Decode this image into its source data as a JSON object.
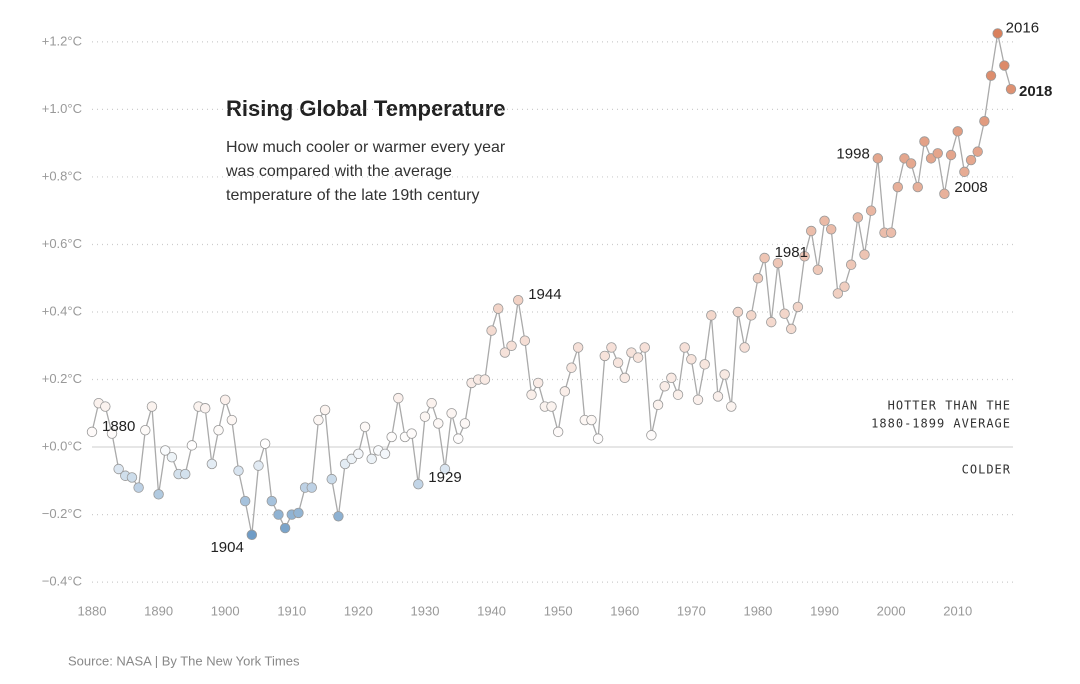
{
  "chart_data": {
    "type": "line",
    "title": "Rising Global Temperature",
    "subtitle": [
      "How much cooler or warmer every year",
      "was compared with the average",
      "temperature of the late 19th century"
    ],
    "source": "Source: NASA | By The New York Times",
    "side_labels": [
      "HOTTER THAN THE",
      "1880-1899 AVERAGE",
      "COLDER"
    ],
    "x": [
      1880,
      1881,
      1882,
      1883,
      1884,
      1885,
      1886,
      1887,
      1888,
      1889,
      1890,
      1891,
      1892,
      1893,
      1894,
      1895,
      1896,
      1897,
      1898,
      1899,
      1900,
      1901,
      1902,
      1903,
      1904,
      1905,
      1906,
      1907,
      1908,
      1909,
      1910,
      1911,
      1912,
      1913,
      1914,
      1915,
      1916,
      1917,
      1918,
      1919,
      1920,
      1921,
      1922,
      1923,
      1924,
      1925,
      1926,
      1927,
      1928,
      1929,
      1930,
      1931,
      1932,
      1933,
      1934,
      1935,
      1936,
      1937,
      1938,
      1939,
      1940,
      1941,
      1942,
      1943,
      1944,
      1945,
      1946,
      1947,
      1948,
      1949,
      1950,
      1951,
      1952,
      1953,
      1954,
      1955,
      1956,
      1957,
      1958,
      1959,
      1960,
      1961,
      1962,
      1963,
      1964,
      1965,
      1966,
      1967,
      1968,
      1969,
      1970,
      1971,
      1972,
      1973,
      1974,
      1975,
      1976,
      1977,
      1978,
      1979,
      1980,
      1981,
      1982,
      1983,
      1984,
      1985,
      1986,
      1987,
      1988,
      1989,
      1990,
      1991,
      1992,
      1993,
      1994,
      1995,
      1996,
      1997,
      1998,
      1999,
      2000,
      2001,
      2002,
      2003,
      2004,
      2005,
      2006,
      2007,
      2008,
      2009,
      2010,
      2011,
      2012,
      2013,
      2014,
      2015,
      2016,
      2017,
      2018
    ],
    "series": [
      {
        "values": [
          0.045,
          0.13,
          0.12,
          0.04,
          -0.065,
          -0.085,
          -0.09,
          -0.12,
          0.05,
          0.12,
          -0.14,
          -0.01,
          -0.03,
          -0.08,
          -0.08,
          0.005,
          0.12,
          0.115,
          -0.05,
          0.05,
          0.14,
          0.08,
          -0.07,
          -0.16,
          -0.26,
          -0.055,
          0.01,
          -0.16,
          -0.2,
          -0.24,
          -0.2,
          -0.195,
          -0.12,
          -0.12,
          0.08,
          0.11,
          -0.095,
          -0.205,
          -0.05,
          -0.035,
          -0.02,
          0.06,
          -0.035,
          -0.01,
          -0.02,
          0.03,
          0.145,
          0.03,
          0.04,
          -0.11,
          0.09,
          0.13,
          0.07,
          -0.065,
          0.1,
          0.025,
          0.07,
          0.19,
          0.2,
          0.2,
          0.345,
          0.41,
          0.28,
          0.3,
          0.435,
          0.315,
          0.155,
          0.19,
          0.12,
          0.12,
          0.045,
          0.165,
          0.235,
          0.295,
          0.08,
          0.08,
          0.025,
          0.27,
          0.295,
          0.25,
          0.205,
          0.28,
          0.265,
          0.295,
          0.035,
          0.125,
          0.18,
          0.205,
          0.155,
          0.295,
          0.26,
          0.14,
          0.245,
          0.39,
          0.15,
          0.215,
          0.12,
          0.4,
          0.295,
          0.39,
          0.5,
          0.56,
          0.37,
          0.545,
          0.395,
          0.35,
          0.415,
          0.565,
          0.64,
          0.525,
          0.67,
          0.645,
          0.455,
          0.475,
          0.54,
          0.68,
          0.57,
          0.7,
          0.855,
          0.635,
          0.635,
          0.77,
          0.855,
          0.84,
          0.77,
          0.905,
          0.855,
          0.87,
          0.75,
          0.865,
          0.935,
          0.815,
          0.85,
          0.875,
          0.965,
          1.1,
          1.225,
          1.13,
          1.06
        ]
      }
    ],
    "line_color": "#aaaaaa",
    "color_scale": {
      "cold": "#6f9cc6",
      "neutral": "#ffffff",
      "hot": "#d9805c"
    },
    "annotations": [
      {
        "text": "1880",
        "x": 1880
      },
      {
        "text": "1904",
        "x": 1904
      },
      {
        "text": "1929",
        "x": 1929
      },
      {
        "text": "1944",
        "x": 1944
      },
      {
        "text": "1981",
        "x": 1981
      },
      {
        "text": "1998",
        "x": 1998
      },
      {
        "text": "2008",
        "x": 2008
      },
      {
        "text": "2016",
        "x": 2016
      },
      {
        "text": "2018",
        "x": 2018,
        "bold": true
      }
    ],
    "xlim": [
      1880,
      2018
    ],
    "ylim": [
      -0.45,
      1.25
    ],
    "xticks": [
      1880,
      1890,
      1900,
      1910,
      1920,
      1930,
      1940,
      1950,
      1960,
      1970,
      1980,
      1990,
      2000,
      2010
    ],
    "yticks": [
      {
        "value": 1.2,
        "label": "+1.2°C"
      },
      {
        "value": 1.0,
        "label": "+1.0°C"
      },
      {
        "value": 0.8,
        "label": "+0.8°C"
      },
      {
        "value": 0.6,
        "label": "+0.6°C"
      },
      {
        "value": 0.4,
        "label": "+0.4°C"
      },
      {
        "value": 0.2,
        "label": "+0.2°C"
      },
      {
        "value": 0,
        "label": "+0.0°C"
      },
      {
        "value": -0.2,
        "label": "−0.2°C"
      },
      {
        "value": -0.4,
        "label": "−0.4°C"
      }
    ],
    "grid": true
  }
}
